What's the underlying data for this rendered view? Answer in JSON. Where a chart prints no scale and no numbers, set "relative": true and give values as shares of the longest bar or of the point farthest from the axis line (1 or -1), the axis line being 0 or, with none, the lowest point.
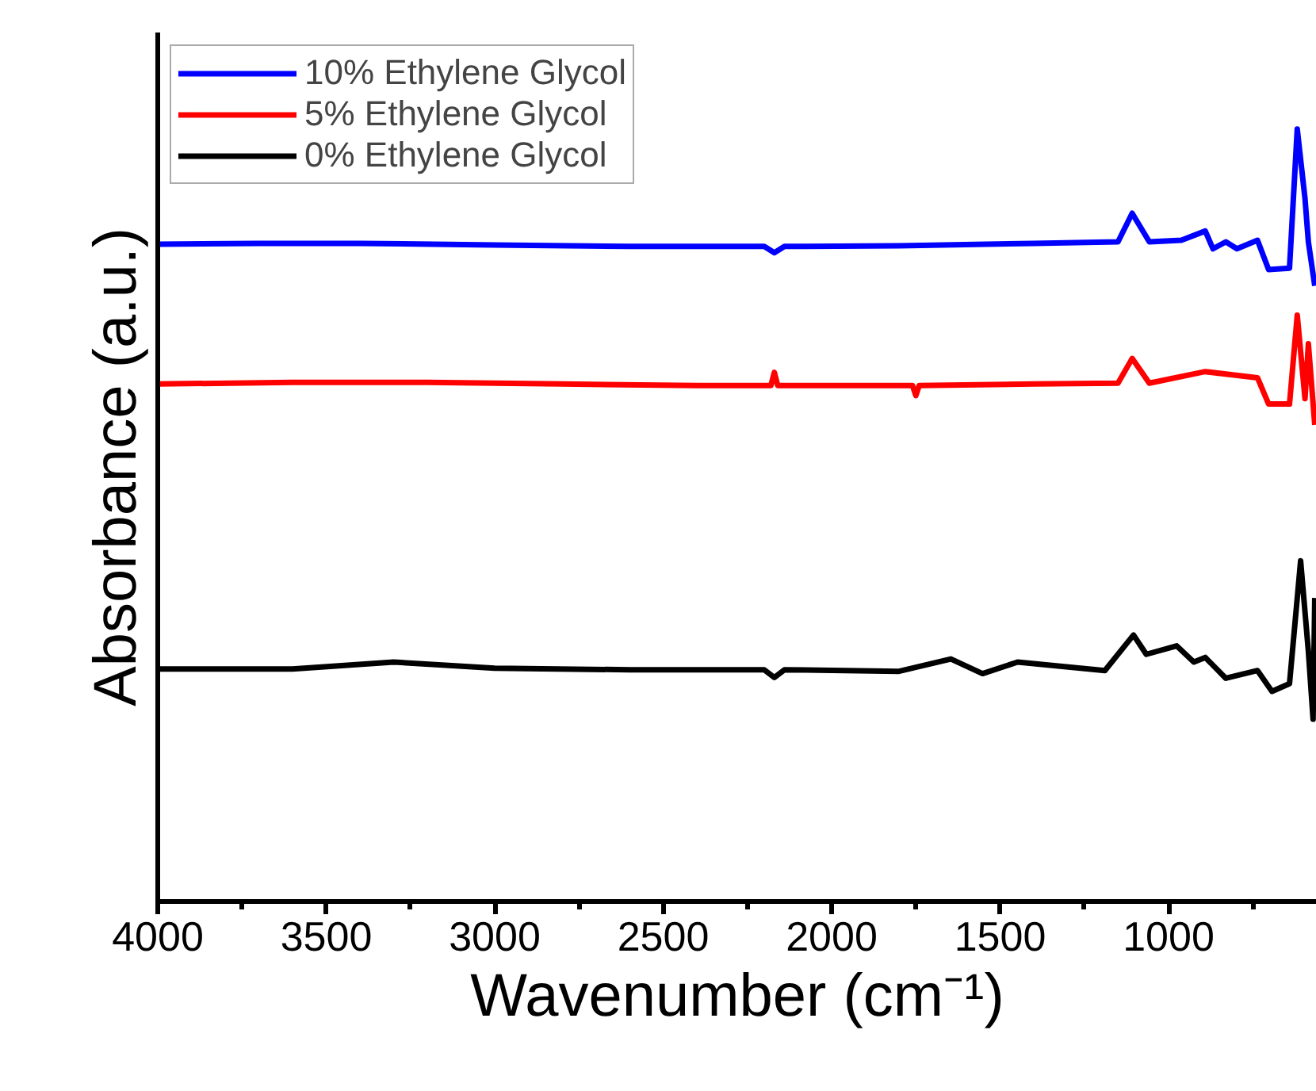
{
  "chart_data": {
    "type": "line",
    "relative": true,
    "xlabel": "Wavenumber (cm⁻¹)",
    "ylabel": "Absorbance (a.u.)",
    "xlim": [
      4000,
      560
    ],
    "xticks": [
      4000,
      3500,
      3000,
      2500,
      2000,
      1500,
      1000
    ],
    "grid": false,
    "legend": "top left",
    "tick_labels": "x",
    "line_style": "solid",
    "marker": "none",
    "series": [
      {
        "name": "10% Ethylene Glycol",
        "color": "#0000ff",
        "x": [
          4000,
          3700,
          3400,
          3000,
          2600,
          2200,
          2170,
          2140,
          1800,
          1400,
          1150,
          1108,
          1057,
          962,
          891,
          868,
          830,
          797,
          736,
          703,
          641,
          618,
          595,
          585,
          566
        ],
        "values": [
          0.851,
          0.852,
          0.852,
          0.85,
          0.848,
          0.848,
          0.84,
          0.848,
          0.849,
          0.852,
          0.854,
          0.891,
          0.854,
          0.856,
          0.868,
          0.845,
          0.854,
          0.845,
          0.856,
          0.818,
          0.82,
          1.0,
          0.91,
          0.854,
          0.797
        ]
      },
      {
        "name": "5% Ethylene Glycol",
        "color": "#ff0000",
        "x": [
          4000,
          3600,
          3200,
          2800,
          2400,
          2180,
          2170,
          2160,
          1760,
          1750,
          1740,
          1400,
          1150,
          1108,
          1057,
          891,
          736,
          703,
          641,
          618,
          595,
          585,
          566
        ],
        "values": [
          0.67,
          0.672,
          0.672,
          0.67,
          0.668,
          0.668,
          0.685,
          0.668,
          0.668,
          0.655,
          0.668,
          0.67,
          0.671,
          0.703,
          0.671,
          0.686,
          0.678,
          0.644,
          0.644,
          0.759,
          0.651,
          0.722,
          0.617
        ]
      },
      {
        "name": "0% Ethylene Glycol",
        "color": "#000000",
        "x": [
          4000,
          3600,
          3300,
          3000,
          2600,
          2200,
          2170,
          2140,
          1800,
          1646,
          1552,
          1448,
          1189,
          1104,
          1066,
          976,
          925,
          891,
          830,
          736,
          693,
          641,
          608,
          585,
          571,
          566
        ],
        "values": [
          0.301,
          0.301,
          0.31,
          0.302,
          0.3,
          0.3,
          0.29,
          0.3,
          0.298,
          0.314,
          0.295,
          0.31,
          0.299,
          0.345,
          0.32,
          0.331,
          0.31,
          0.316,
          0.289,
          0.299,
          0.272,
          0.282,
          0.441,
          0.324,
          0.236,
          0.393
        ]
      }
    ]
  }
}
